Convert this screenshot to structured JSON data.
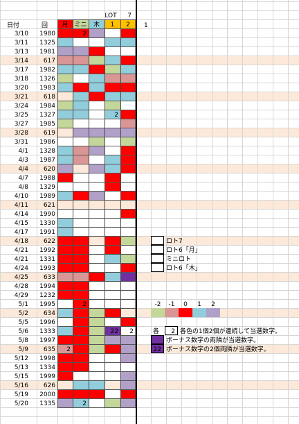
{
  "header": {
    "lot": "LOT",
    "seven": "7",
    "date": "日付",
    "round": "回",
    "extra": "1",
    "cols": [
      {
        "label": "月",
        "color": "#ff0000",
        "text_color": "#ffffff"
      },
      {
        "label": "ミニ",
        "color": "#c4d79b",
        "text_color": "#000000"
      },
      {
        "label": "木",
        "color": "#92cddc",
        "text_color": "#000000"
      },
      {
        "label": "1",
        "color": "#ffc000",
        "text_color": "#000000"
      },
      {
        "label": "2",
        "color": "#ffc000",
        "text_color": "#000000"
      }
    ]
  },
  "rows": [
    {
      "date": "3/10",
      "round": "1980",
      "highlight": false,
      "cells": [
        "#ff0000",
        {
          "color": "#ff0000",
          "text": "2"
        },
        "#b1a0c7",
        null,
        "#ff0000"
      ]
    },
    {
      "date": "3/11",
      "round": "1325",
      "highlight": false,
      "cells": [
        "#92cddc",
        null,
        null,
        "#92cddc",
        "#92cddc"
      ]
    },
    {
      "date": "3/13",
      "round": "1981",
      "highlight": false,
      "cells": [
        "#b1a0c7",
        "#b1a0c7",
        "#ff0000",
        null,
        null
      ]
    },
    {
      "date": "3/14",
      "round": "617",
      "highlight": true,
      "cells": [
        "#da9694",
        "#da9694",
        "#c4d79b",
        "#92cddc",
        "#ff0000"
      ]
    },
    {
      "date": "3/17",
      "round": "1982",
      "highlight": false,
      "cells": [
        "#92cddc",
        "#92cddc",
        "#ff0000",
        "#c4d79b",
        "#92cddc"
      ]
    },
    {
      "date": "3/18",
      "round": "1326",
      "highlight": false,
      "cells": [
        "#c4d79b",
        null,
        "#92cddc",
        "#da9694",
        "#da9694"
      ]
    },
    {
      "date": "3/20",
      "round": "1983",
      "highlight": false,
      "cells": [
        "#92cddc",
        "#ff0000",
        "#92cddc",
        "#ff0000",
        "#ff0000"
      ]
    },
    {
      "date": "3/21",
      "round": "618",
      "highlight": true,
      "cells": [
        null,
        "#92cddc",
        "#ff0000",
        "#92cddc",
        "#92cddc"
      ]
    },
    {
      "date": "3/24",
      "round": "1984",
      "highlight": false,
      "cells": [
        "#c4d79b",
        "#92cddc",
        null,
        "#c4d79b",
        null
      ]
    },
    {
      "date": "3/25",
      "round": "1327",
      "highlight": false,
      "cells": [
        "#92cddc",
        "#92cddc",
        null,
        {
          "color": "#92cddc",
          "text": "2"
        },
        "#ff0000"
      ]
    },
    {
      "date": "3/27",
      "round": "1985",
      "highlight": false,
      "cells": [
        "#c4d79b",
        null,
        null,
        null,
        "#da9694"
      ]
    },
    {
      "date": "3/28",
      "round": "619",
      "highlight": true,
      "cells": [
        null,
        "#b1a0c7",
        "#b1a0c7",
        "#b1a0c7",
        "#b1a0c7"
      ]
    },
    {
      "date": "3/31",
      "round": "1986",
      "highlight": false,
      "cells": [
        null,
        null,
        "#c4d79b",
        null,
        "#c4d79b"
      ]
    },
    {
      "date": "4/1",
      "round": "1328",
      "highlight": false,
      "cells": [
        "#92cddc",
        "#da9694",
        "#b1a0c7",
        null,
        "#ff0000"
      ]
    },
    {
      "date": "4/3",
      "round": "1987",
      "highlight": false,
      "cells": [
        "#92cddc",
        "#da9694",
        null,
        "#92cddc",
        "#ff0000"
      ]
    },
    {
      "date": "4/4",
      "round": "620",
      "highlight": true,
      "cells": [
        "#b1a0c7",
        null,
        "#b1a0c7",
        "#92cddc",
        "#ff0000"
      ]
    },
    {
      "date": "4/7",
      "round": "1988",
      "highlight": false,
      "cells": [
        "#ff0000",
        null,
        null,
        "#ff0000",
        null
      ]
    },
    {
      "date": "4/8",
      "round": "1329",
      "highlight": false,
      "cells": [
        null,
        null,
        null,
        "#ff0000",
        null
      ]
    },
    {
      "date": "4/10",
      "round": "1989",
      "highlight": false,
      "cells": [
        "#92cddc",
        "#ff0000",
        "#b1a0c7",
        null,
        "#ff0000"
      ]
    },
    {
      "date": "4/11",
      "round": "621",
      "highlight": true,
      "cells": [
        null,
        null,
        null,
        null,
        null
      ]
    },
    {
      "date": "4/14",
      "round": "1990",
      "highlight": false,
      "cells": [
        null,
        null,
        null,
        null,
        "#ff0000"
      ]
    },
    {
      "date": "4/15",
      "round": "1330",
      "highlight": false,
      "cells": [
        "#92cddc",
        null,
        null,
        null,
        null
      ]
    },
    {
      "date": "4/17",
      "round": "1991",
      "highlight": false,
      "cells": [
        "#92cddc",
        null,
        null,
        null,
        null
      ]
    },
    {
      "date": "4/18",
      "round": "622",
      "highlight": true,
      "cells": [
        "#ff0000",
        "#ff0000",
        null,
        "#ff0000",
        "#c4d79b"
      ]
    },
    {
      "date": "4/21",
      "round": "1992",
      "highlight": false,
      "cells": [
        "#ff0000",
        "#ff0000",
        null,
        "#ff0000",
        null
      ]
    },
    {
      "date": "4/21",
      "round": "1331",
      "highlight": false,
      "cells": [
        "#ff0000",
        "#ff0000",
        null,
        "#92cddc",
        "#c4d79b"
      ]
    },
    {
      "date": "4/24",
      "round": "1993",
      "highlight": false,
      "cells": [
        "#ff0000",
        "#ff0000",
        null,
        null,
        "#ff0000"
      ]
    },
    {
      "date": "4/25",
      "round": "633",
      "highlight": true,
      "cells": [
        "#da9694",
        "#da9694",
        "#ff0000",
        "#92cddc",
        "#7030a0"
      ]
    },
    {
      "date": "4/28",
      "round": "1994",
      "highlight": false,
      "cells": [
        "#ff0000",
        "#ff0000",
        null,
        null,
        null
      ]
    },
    {
      "date": "4/29",
      "round": "1232",
      "highlight": false,
      "cells": [
        "#ff0000",
        "#ff0000",
        null,
        null,
        null
      ]
    },
    {
      "date": "5/1",
      "round": "1995",
      "highlight": false,
      "cells": [
        null,
        {
          "color": "#ff0000",
          "text": "2"
        },
        null,
        null,
        null
      ]
    },
    {
      "date": "5/2",
      "round": "634",
      "highlight": true,
      "cells": [
        "#92cddc",
        "#ff0000",
        "#c4d79b",
        "#ff0000",
        null
      ]
    },
    {
      "date": "5/5",
      "round": "1996",
      "highlight": false,
      "cells": [
        null,
        "#ff0000",
        "#c4d79b",
        null,
        "#ff0000"
      ]
    },
    {
      "date": "5/6",
      "round": "1333",
      "highlight": false,
      "cells": [
        "#92cddc",
        "#ff0000",
        "#c4d79b",
        {
          "color": "#7030a0",
          "text": "22"
        },
        {
          "color": null,
          "text": "2"
        }
      ]
    },
    {
      "date": "5/8",
      "round": "1997",
      "highlight": false,
      "cells": [
        "#ff0000",
        "#ff0000",
        "#c4d79b",
        "#b1a0c7",
        "#b1a0c7"
      ]
    },
    {
      "date": "5/9",
      "round": "635",
      "highlight": true,
      "cells": [
        {
          "color": "#da9694",
          "text": "2"
        },
        "#ff0000",
        "#c4d79b",
        "#ff0000",
        "#b1a0c7"
      ]
    },
    {
      "date": "5/12",
      "round": "1998",
      "highlight": false,
      "cells": [
        "#ff0000",
        "#ff0000",
        null,
        null,
        "#b1a0c7"
      ]
    },
    {
      "date": "5/13",
      "round": "1334",
      "highlight": false,
      "cells": [
        "#ff0000",
        "#ff0000",
        null,
        null,
        null
      ]
    },
    {
      "date": "5/15",
      "round": "1999",
      "highlight": false,
      "cells": [
        "#ff0000",
        null,
        null,
        null,
        "#b1a0c7"
      ]
    },
    {
      "date": "5/16",
      "round": "626",
      "highlight": true,
      "cells": [
        null,
        "#92cddc",
        "#92cddc",
        null,
        "#b1a0c7"
      ]
    },
    {
      "date": "5/19",
      "round": "2000",
      "highlight": false,
      "cells": [
        "#ff0000",
        "#ff0000",
        "#ff0000",
        null,
        "#ff0000"
      ]
    },
    {
      "date": "5/20",
      "round": "1335",
      "highlight": false,
      "cells": [
        "#b1a0c7",
        {
          "color": "#92cddc",
          "text": "2"
        },
        null,
        "#c4d79b",
        "#b1a0c7"
      ]
    }
  ],
  "key": [
    {
      "label": "ロト7"
    },
    {
      "label": "ロト6「月」"
    },
    {
      "label": "ミニロト"
    },
    {
      "label": "ロト6「木」"
    }
  ],
  "scale": [
    {
      "value": -2,
      "color": "#c4d79b"
    },
    {
      "value": -1,
      "color": "#da9694"
    },
    {
      "value": 0,
      "color": "#ff0000"
    },
    {
      "value": 1,
      "color": "#92cddc"
    },
    {
      "value": 2,
      "color": "#b1a0c7"
    }
  ],
  "notes": [
    {
      "prefix": "各",
      "box_text": "2",
      "box_color": "#ffffff",
      "text": "各色の1個2個が連続して当選数字。"
    },
    {
      "box_color": "#7030a0",
      "text": "ボーナス数字の両隣が当選数字。"
    },
    {
      "box_color": "#7030a0",
      "box_text": "22",
      "text": "ボーナス数字の2個両隣が当選数字。"
    }
  ]
}
